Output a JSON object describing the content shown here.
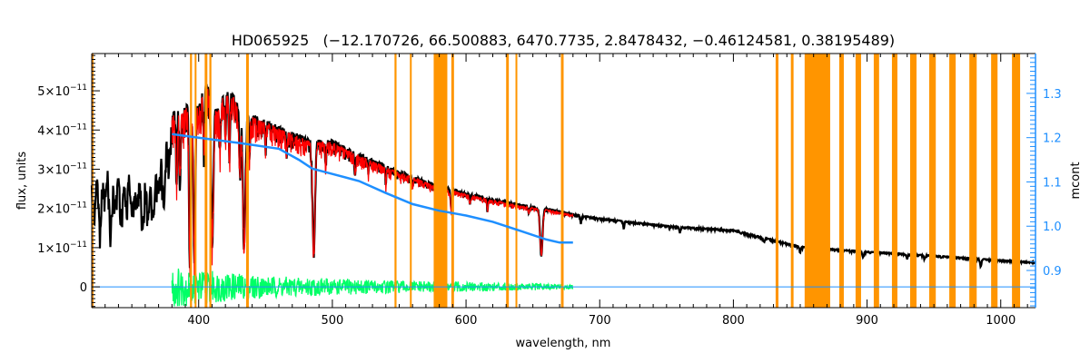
{
  "chart_data": {
    "type": "line",
    "title": "HD065925   (−12.170726, 66.500883, 6470.7735, 2.8478432, −0.46124581, 0.38195489)",
    "xlabel": "wavelength, nm",
    "ylabel": "flux, units",
    "y2label": "mcont",
    "xlim": [
      320,
      1026
    ],
    "ylim": [
      -5.3e-12,
      5.95e-11
    ],
    "y2lim": [
      0.816,
      1.39
    ],
    "x_ticks": [
      400,
      500,
      600,
      700,
      800,
      900,
      1000
    ],
    "x_minor_step": 10,
    "y_ticks": [
      {
        "value": 0,
        "mant": "0",
        "exp": ""
      },
      {
        "value": 1,
        "mant": "1×10",
        "exp": "−11"
      },
      {
        "value": 2,
        "mant": "2×10",
        "exp": "−11"
      },
      {
        "value": 3,
        "mant": "3×10",
        "exp": "−11"
      },
      {
        "value": 4,
        "mant": "4×10",
        "exp": "−11"
      },
      {
        "value": 5,
        "mant": "5×10",
        "exp": "−11"
      }
    ],
    "y_unit": 1e-11,
    "y_minor_step": 0.1,
    "y2_ticks": [
      "0.9",
      "1.0",
      "1.1",
      "1.2",
      "1.3"
    ],
    "y2_minor_step": 0.01,
    "colors": {
      "observed": "#000000",
      "model": "#ff0000",
      "mcont": "#1e8fff",
      "residual": "#00ff66",
      "mask": "#ff9500",
      "zero_line": "#1e8fff"
    },
    "series": [
      {
        "name": "observed flux",
        "unit": "1e-11",
        "points": [
          [
            320,
            2.6
          ],
          [
            322,
            1.9
          ],
          [
            324,
            3.0
          ],
          [
            326,
            1.5
          ],
          [
            328,
            2.8
          ],
          [
            330,
            2.3
          ],
          [
            332,
            3.0
          ],
          [
            334,
            1.4
          ],
          [
            336,
            2.6
          ],
          [
            338,
            2.2
          ],
          [
            340,
            3.0
          ],
          [
            342,
            1.8
          ],
          [
            344,
            2.7
          ],
          [
            346,
            2.1
          ],
          [
            348,
            3.0
          ],
          [
            350,
            1.9
          ],
          [
            352,
            2.6
          ],
          [
            354,
            2.2
          ],
          [
            356,
            2.9
          ],
          [
            358,
            1.6
          ],
          [
            360,
            2.8
          ],
          [
            362,
            2.0
          ],
          [
            364,
            2.6
          ],
          [
            366,
            1.7
          ],
          [
            368,
            2.9
          ],
          [
            370,
            2.5
          ],
          [
            372,
            3.3
          ],
          [
            374,
            2.0
          ],
          [
            376,
            3.9
          ],
          [
            378,
            3.2
          ],
          [
            380,
            4.4
          ],
          [
            383,
            4.6
          ],
          [
            388,
            4.5
          ],
          [
            392,
            4.7
          ],
          [
            396,
            4.8
          ],
          [
            400,
            4.6
          ],
          [
            403,
            5.0
          ],
          [
            406,
            5.2
          ],
          [
            410,
            4.8
          ],
          [
            414,
            4.5
          ],
          [
            418,
            4.9
          ],
          [
            422,
            5.0
          ],
          [
            426,
            4.9
          ],
          [
            430,
            4.6
          ],
          [
            434,
            4.5
          ],
          [
            440,
            4.4
          ],
          [
            450,
            4.25
          ],
          [
            460,
            4.1
          ],
          [
            470,
            3.95
          ],
          [
            480,
            3.8
          ],
          [
            490,
            3.75
          ],
          [
            500,
            3.75
          ],
          [
            510,
            3.55
          ],
          [
            520,
            3.4
          ],
          [
            530,
            3.25
          ],
          [
            540,
            3.1
          ],
          [
            550,
            2.95
          ],
          [
            560,
            2.85
          ],
          [
            570,
            2.7
          ],
          [
            580,
            2.58
          ],
          [
            590,
            2.5
          ],
          [
            600,
            2.4
          ],
          [
            620,
            2.25
          ],
          [
            640,
            2.1
          ],
          [
            660,
            2.0
          ],
          [
            680,
            1.86
          ],
          [
            700,
            1.75
          ],
          [
            750,
            1.56
          ],
          [
            800,
            1.45
          ],
          [
            850,
            1.03
          ],
          [
            900,
            0.9
          ],
          [
            950,
            0.8
          ],
          [
            1000,
            0.68
          ],
          [
            1026,
            0.63
          ]
        ],
        "noise": [
          [
            320,
            0.6
          ],
          [
            378,
            0.7
          ],
          [
            380,
            0.9
          ],
          [
            450,
            0.5
          ],
          [
            520,
            0.3
          ],
          [
            600,
            0.15
          ],
          [
            700,
            0.06
          ],
          [
            1026,
            0.04
          ]
        ],
        "absorption_lines": [
          [
            383.5,
            2.8,
            0.6
          ],
          [
            386,
            3.0,
            0.6
          ],
          [
            393.4,
            0.6,
            0.9
          ],
          [
            396.8,
            0.7,
            0.9
          ],
          [
            404,
            3.4,
            0.6
          ],
          [
            410.2,
            1.3,
            1.2
          ],
          [
            416,
            3.5,
            0.5
          ],
          [
            420,
            3.8,
            0.5
          ],
          [
            423,
            3.3,
            0.5
          ],
          [
            430.8,
            3.0,
            0.7
          ],
          [
            434.0,
            1.1,
            1.3
          ],
          [
            438,
            3.2,
            0.5
          ],
          [
            450,
            3.6,
            0.5
          ],
          [
            466,
            3.6,
            0.5
          ],
          [
            486.1,
            0.9,
            1.3
          ],
          [
            495,
            3.2,
            0.5
          ],
          [
            517,
            2.9,
            0.6
          ],
          [
            527,
            3.0,
            0.6
          ],
          [
            540,
            2.7,
            0.5
          ],
          [
            560,
            2.6,
            0.5
          ],
          [
            589,
            2.0,
            0.8
          ],
          [
            603,
            2.15,
            0.5
          ],
          [
            616,
            2.0,
            0.5
          ],
          [
            647,
            1.9,
            0.5
          ],
          [
            656.3,
            0.85,
            1.3
          ],
          [
            686,
            1.65,
            0.7
          ],
          [
            718,
            1.5,
            0.6
          ],
          [
            760,
            1.4,
            0.8
          ],
          [
            823,
            1.15,
            0.8
          ],
          [
            850,
            0.9,
            0.7
          ],
          [
            866,
            0.85,
            0.7
          ],
          [
            897,
            0.76,
            0.8
          ],
          [
            930,
            0.72,
            0.7
          ],
          [
            943,
            0.72,
            0.7
          ],
          [
            956,
            0.75,
            0.6
          ],
          [
            985,
            0.55,
            0.8
          ]
        ]
      },
      {
        "name": "model flux",
        "unit": "1e-11",
        "range": [
          380,
          680
        ],
        "scale": 0.985,
        "noise": [
          [
            380,
            1.0
          ],
          [
            450,
            0.6
          ],
          [
            520,
            0.35
          ],
          [
            600,
            0.15
          ],
          [
            680,
            0.08
          ]
        ]
      },
      {
        "name": "mcont",
        "axis": "right",
        "points": [
          [
            380,
            1.208
          ],
          [
            400,
            1.2
          ],
          [
            430,
            1.188
          ],
          [
            460,
            1.175
          ],
          [
            475,
            1.15
          ],
          [
            485,
            1.13
          ],
          [
            500,
            1.118
          ],
          [
            520,
            1.102
          ],
          [
            540,
            1.075
          ],
          [
            560,
            1.05
          ],
          [
            580,
            1.035
          ],
          [
            600,
            1.024
          ],
          [
            620,
            1.01
          ],
          [
            640,
            0.99
          ],
          [
            660,
            0.97
          ],
          [
            670,
            0.963
          ],
          [
            680,
            0.963
          ]
        ]
      },
      {
        "name": "residual",
        "unit": "1e-11",
        "range": [
          380,
          680
        ],
        "amplitude": [
          [
            380,
            0.55
          ],
          [
            400,
            0.45
          ],
          [
            450,
            0.28
          ],
          [
            550,
            0.16
          ],
          [
            650,
            0.09
          ],
          [
            680,
            0.05
          ]
        ]
      },
      {
        "name": "zero line",
        "value": 0,
        "range": [
          320,
          1026
        ]
      }
    ],
    "masked_regions": [
      [
        320,
        321
      ],
      [
        393.5,
        395
      ],
      [
        397,
        398
      ],
      [
        404.5,
        406.5
      ],
      [
        408,
        409.5
      ],
      [
        435.5,
        437.5
      ],
      [
        546.5,
        548
      ],
      [
        558,
        559
      ],
      [
        575.8,
        586
      ],
      [
        589,
        591
      ],
      [
        630,
        632
      ],
      [
        637,
        638
      ],
      [
        671,
        673
      ],
      [
        831.6,
        833.7
      ],
      [
        843,
        845
      ],
      [
        853.3,
        872.4
      ],
      [
        879.2,
        882.6
      ],
      [
        891.4,
        895.5
      ],
      [
        905,
        909
      ],
      [
        918.6,
        922.7
      ],
      [
        932.2,
        937
      ],
      [
        946.5,
        951.4
      ],
      [
        961.5,
        966.3
      ],
      [
        976.5,
        982
      ],
      [
        992.8,
        997.6
      ],
      [
        1008.4,
        1014.5
      ]
    ]
  }
}
